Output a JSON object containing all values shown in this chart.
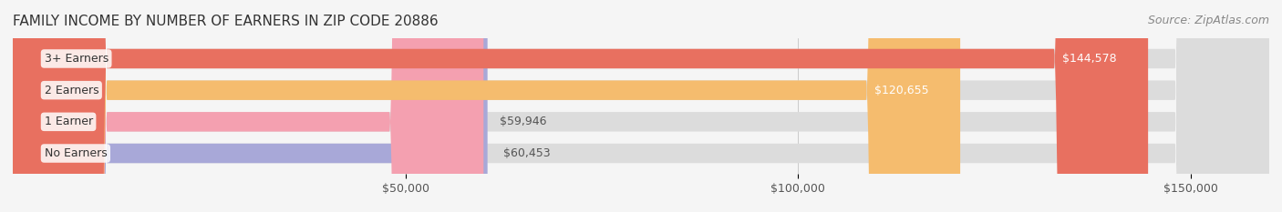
{
  "title": "FAMILY INCOME BY NUMBER OF EARNERS IN ZIP CODE 20886",
  "source": "Source: ZipAtlas.com",
  "categories": [
    "No Earners",
    "1 Earner",
    "2 Earners",
    "3+ Earners"
  ],
  "values": [
    60453,
    59946,
    120655,
    144578
  ],
  "bar_colors": [
    "#a8a8d8",
    "#f4a0b0",
    "#f5bc6e",
    "#e87060"
  ],
  "label_colors": [
    "#555555",
    "#555555",
    "#ffffff",
    "#ffffff"
  ],
  "xlim": [
    0,
    160000
  ],
  "xticks": [
    50000,
    100000,
    150000
  ],
  "xtick_labels": [
    "$50,000",
    "$100,000",
    "$150,000"
  ],
  "bg_color": "#f0f0f0",
  "bar_bg_color": "#e8e8e8",
  "title_fontsize": 11,
  "source_fontsize": 9,
  "label_fontsize": 9,
  "tick_fontsize": 9,
  "bar_height": 0.62,
  "figsize": [
    14.06,
    2.33
  ]
}
